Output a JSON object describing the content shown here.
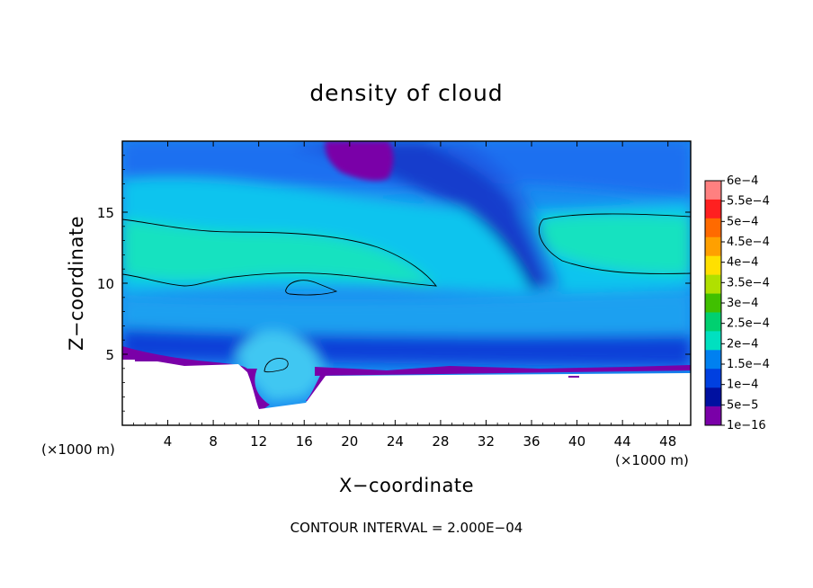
{
  "chart_data": {
    "type": "heatmap",
    "title": "density of cloud",
    "xlabel": "X−coordinate",
    "ylabel": "Z−coordinate",
    "x_unit": "(×1000 m)",
    "y_unit": "(×1000 m)",
    "xlim": [
      0,
      50
    ],
    "ylim": [
      0,
      20
    ],
    "x_ticks": [
      "4",
      "8",
      "12",
      "16",
      "20",
      "24",
      "28",
      "32",
      "36",
      "40",
      "44",
      "48"
    ],
    "x_tick_values": [
      4,
      8,
      12,
      16,
      20,
      24,
      28,
      32,
      36,
      40,
      44,
      48
    ],
    "y_ticks": [
      "5",
      "10",
      "15"
    ],
    "y_tick_values": [
      5,
      10,
      15
    ],
    "colorbar": {
      "labels": [
        "6e−4",
        "5.5e−4",
        "5e−4",
        "4.5e−4",
        "4e−4",
        "3.5e−4",
        "3e−4",
        "2.5e−4",
        "2e−4",
        "1.5e−4",
        "1e−4",
        "5e−5",
        "1e−16"
      ],
      "values": [
        0.0006,
        0.00055,
        0.0005,
        0.00045,
        0.0004,
        0.00035,
        0.0003,
        0.00025,
        0.0002,
        0.00015,
        0.0001,
        5e-05,
        1e-16
      ],
      "colors": [
        "#ff8080",
        "#ff2020",
        "#ff6a00",
        "#ffa000",
        "#ffe000",
        "#b0e000",
        "#40c000",
        "#00d070",
        "#00e0c0",
        "#0080f0",
        "#0040e0",
        "#0010a0",
        "#7a00a8"
      ]
    },
    "contour_levels": [
      0.0002,
      0.0004
    ],
    "contour_interval_text": "CONTOUR INTERVAL = 2.000E−04",
    "missing_data_color": "#ffffff"
  }
}
